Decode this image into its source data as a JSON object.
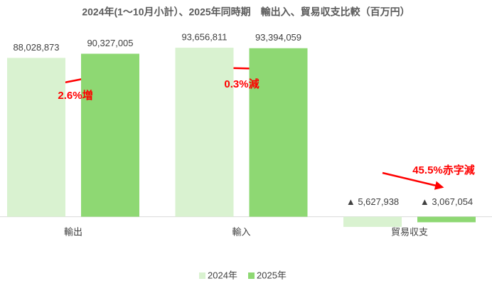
{
  "chart_data": {
    "type": "bar",
    "title": "2024年(1〜10月小計）、2025年同時期　輸出入、貿易収支比較（百万円）",
    "categories": [
      "輸出",
      "輸入",
      "貿易収支"
    ],
    "series": [
      {
        "name": "2024年",
        "color": "#d9f2d0",
        "values": [
          88028873,
          93656811,
          -5627938
        ],
        "value_labels": [
          "88,028,873",
          "93,656,811",
          "▲ 5,627,938"
        ]
      },
      {
        "name": "2025年",
        "color": "#8ed873",
        "values": [
          90327005,
          93394059,
          -3067054
        ],
        "value_labels": [
          "90,327,005",
          "93,394,059",
          "▲ 3,067,054"
        ]
      }
    ],
    "annotations": [
      "2.6%増",
      "0.3%減",
      "45.5%赤字減"
    ],
    "ylim": [
      -10000000,
      100000000
    ],
    "grid": false,
    "legend": "bottom"
  }
}
